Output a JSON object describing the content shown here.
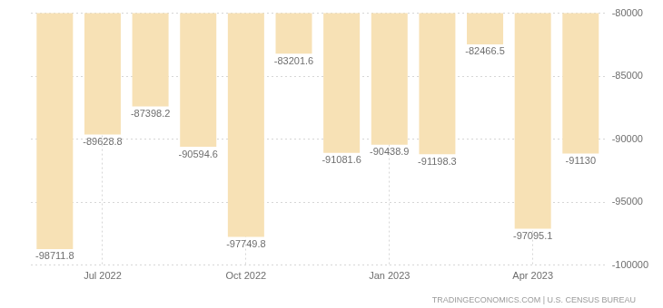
{
  "chart_data": {
    "type": "bar",
    "categories": [
      null,
      "Jul 2022",
      null,
      null,
      "Oct 2022",
      null,
      null,
      "Jan 2023",
      null,
      null,
      "Apr 2023",
      null
    ],
    "values": [
      -98711.8,
      -89628.8,
      -87398.2,
      -90594.6,
      -97749.8,
      -83201.6,
      -91081.6,
      -90438.9,
      -91198.3,
      -82466.5,
      -97095.1,
      -91130
    ],
    "color": "#f7e1b5",
    "ylim": [
      -100000,
      -80000
    ],
    "yticks": [
      -100000,
      -95000,
      -90000,
      -85000,
      -80000
    ],
    "grid": true,
    "data_labels": true,
    "source": "TRADINGECONOMICS.COM | U.S. CENSUS BUREAU"
  }
}
